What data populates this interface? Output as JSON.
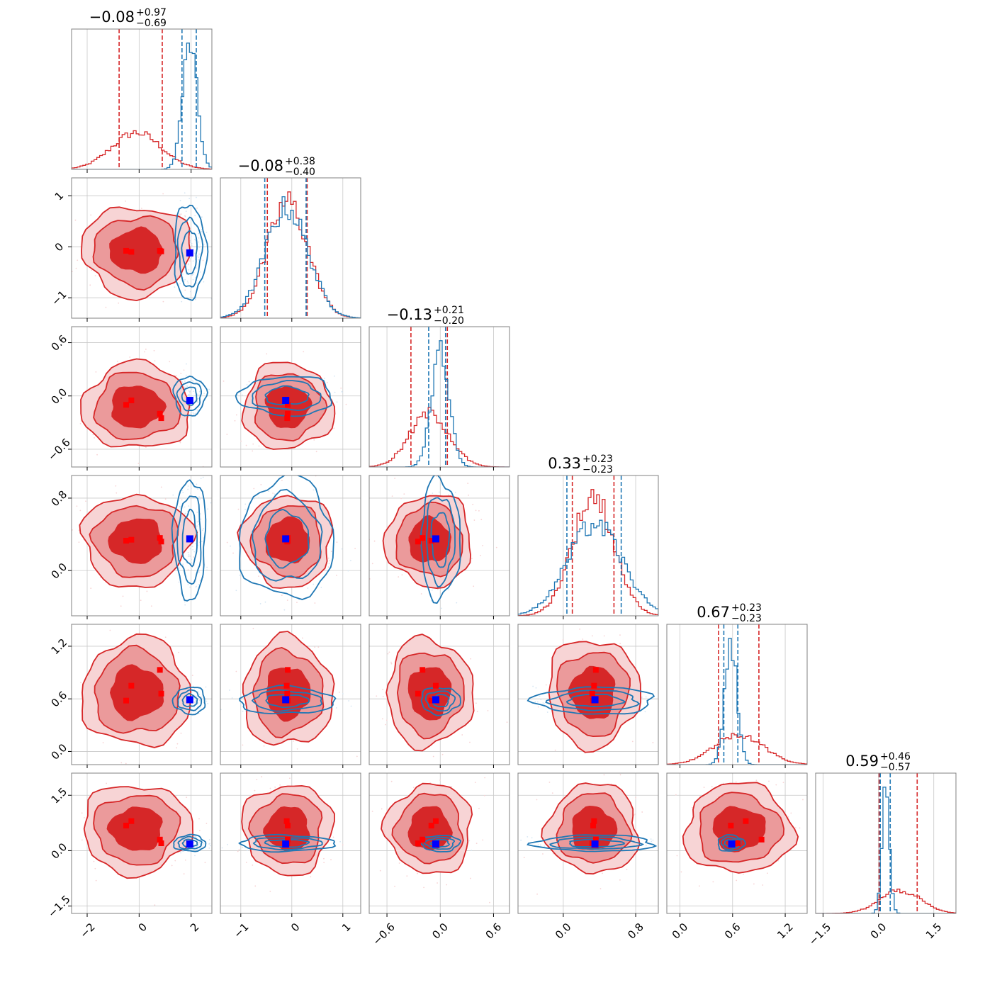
{
  "chart_data": {
    "type": "corner",
    "n_params": 6,
    "grid": true,
    "colors": {
      "red": "#d62728",
      "red_mid": "#eb9a9b",
      "red_light": "#f7d4d5",
      "blue": "#1f77b4",
      "truth_blue": "#0000ff",
      "truth_red": "#ff0000"
    },
    "params": [
      {
        "center": -0.08,
        "plus": "+0.97",
        "minus": "−0.69",
        "title_value": "−0.08",
        "range": [
          -2.6,
          2.8
        ],
        "ticks": [
          -2,
          0,
          2
        ],
        "tick_labels": [
          "−2",
          "0",
          "2"
        ],
        "red": {
          "mu": -0.1,
          "sigma": 0.95,
          "q": [
            -0.77,
            0.89
          ]
        },
        "blue": {
          "mu": 1.95,
          "sigma": 0.28,
          "q": [
            1.65,
            2.2
          ]
        }
      },
      {
        "center": -0.08,
        "plus": "+0.38",
        "minus": "−0.40",
        "title_value": "−0.08",
        "range": [
          -1.4,
          1.35
        ],
        "ticks": [
          -1,
          0,
          1
        ],
        "tick_labels": [
          "−1",
          "0",
          "1"
        ],
        "red": {
          "mu": -0.08,
          "sigma": 0.4,
          "q": [
            -0.48,
            0.3
          ]
        },
        "blue": {
          "mu": -0.1,
          "sigma": 0.42,
          "q": [
            -0.53,
            0.28
          ]
        }
      },
      {
        "center": -0.13,
        "plus": "+0.21",
        "minus": "−0.20",
        "title_value": "−0.13",
        "range": [
          -0.8,
          0.78
        ],
        "ticks": [
          -0.6,
          0,
          0.6
        ],
        "tick_labels": [
          "−0.6",
          "0.0",
          "0.6"
        ],
        "red": {
          "mu": -0.12,
          "sigma": 0.22,
          "q": [
            -0.33,
            0.08
          ]
        },
        "blue": {
          "mu": 0.0,
          "sigma": 0.1,
          "q": [
            -0.13,
            0.06
          ]
        }
      },
      {
        "center": 0.33,
        "plus": "+0.23",
        "minus": "−0.23",
        "title_value": "0.33",
        "range": [
          -0.5,
          1.05
        ],
        "ticks": [
          0,
          0.8
        ],
        "tick_labels": [
          "0.0",
          "0.8"
        ],
        "red": {
          "mu": 0.33,
          "sigma": 0.23,
          "q": [
            0.1,
            0.56
          ]
        },
        "blue": {
          "mu": 0.35,
          "sigma": 0.3,
          "q": [
            0.04,
            0.64
          ]
        }
      },
      {
        "center": 0.67,
        "plus": "+0.23",
        "minus": "−0.23",
        "title_value": "0.67",
        "range": [
          -0.15,
          1.45
        ],
        "ticks": [
          0,
          0.6,
          1.2
        ],
        "tick_labels": [
          "0.0",
          "0.6",
          "1.2"
        ],
        "red": {
          "mu": 0.67,
          "sigma": 0.28,
          "q": [
            0.44,
            0.9
          ]
        },
        "blue": {
          "mu": 0.58,
          "sigma": 0.07,
          "q": [
            0.5,
            0.66
          ]
        }
      },
      {
        "center": 0.59,
        "plus": "+0.46",
        "minus": "−0.57",
        "title_value": "0.59",
        "range": [
          -1.7,
          2.1
        ],
        "ticks": [
          -1.5,
          0,
          1.5
        ],
        "tick_labels": [
          "−1.5",
          "0.0",
          "1.5"
        ],
        "red": {
          "mu": 0.59,
          "sigma": 0.55,
          "q": [
            0.02,
            1.05
          ]
        },
        "blue": {
          "mu": 0.2,
          "sigma": 0.1,
          "q": [
            0.05,
            0.32
          ]
        }
      }
    ],
    "truth_blue": [
      1.95,
      -0.12,
      -0.05,
      0.35,
      0.59,
      0.18
    ],
    "truth_red": [
      [
        -0.5,
        -0.08,
        -0.1,
        0.33,
        0.58,
        0.68
      ],
      [
        -0.3,
        -0.1,
        -0.05,
        0.34,
        0.75,
        0.8
      ],
      [
        0.8,
        -0.08,
        -0.2,
        0.36,
        0.93,
        0.3
      ],
      [
        0.85,
        -0.09,
        -0.25,
        0.32,
        0.66,
        0.2
      ]
    ]
  }
}
